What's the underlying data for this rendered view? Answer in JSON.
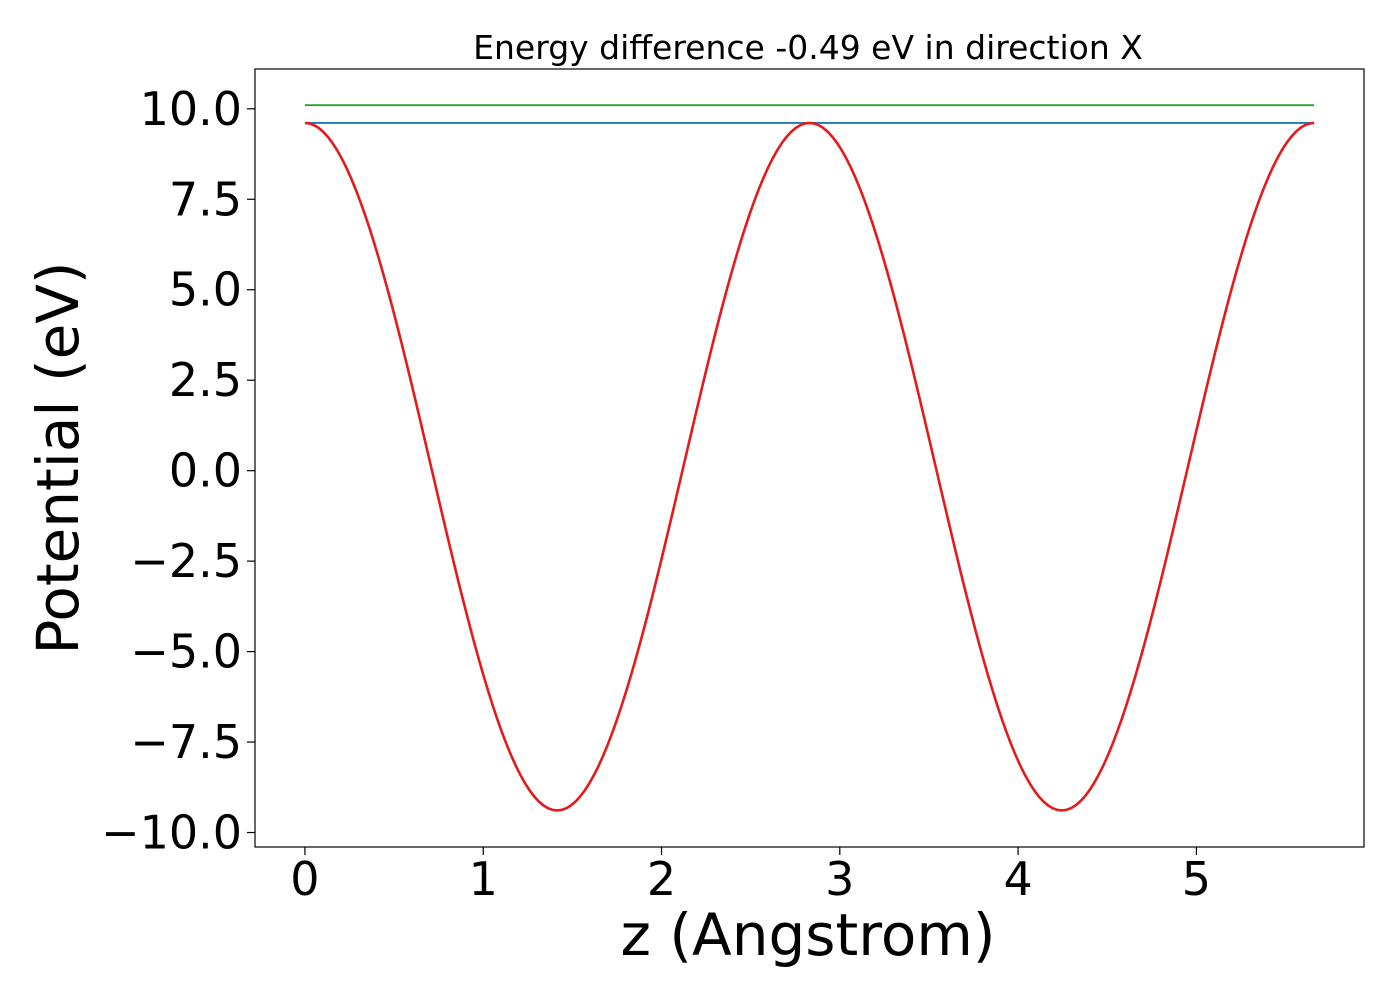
{
  "chart_data": {
    "type": "line",
    "title": "Energy difference -0.49 eV in direction X",
    "xlabel": "z (Angstrom)",
    "ylabel": "Potential (eV)",
    "xlim": [
      -0.28,
      5.94
    ],
    "ylim": [
      -10.4,
      11.1
    ],
    "x_ticks": [
      0,
      1,
      2,
      3,
      4,
      5
    ],
    "x_tick_labels": [
      "0",
      "1",
      "2",
      "3",
      "4",
      "5"
    ],
    "y_ticks": [
      10.0,
      7.5,
      5.0,
      2.5,
      0.0,
      -2.5,
      -5.0,
      -7.5,
      -10.0
    ],
    "y_tick_labels": [
      "10.0",
      "7.5",
      "5.0",
      "2.5",
      "0.0",
      "−2.5",
      "−5.0",
      "−7.5",
      "−10.0"
    ],
    "grid": false,
    "series": [
      {
        "kind": "horizontal",
        "color": "#2ca02c",
        "x": [
          0,
          5.66
        ],
        "y": [
          10.1,
          10.1
        ]
      },
      {
        "kind": "horizontal",
        "color": "#1f77b4",
        "x": [
          0,
          5.66
        ],
        "y": [
          9.61,
          9.61
        ]
      },
      {
        "kind": "cosine",
        "color": "#e41a1c",
        "x_start": 0,
        "x_end": 5.66,
        "period": 2.83,
        "amplitude": 9.5,
        "offset": 0.11,
        "y_max": 9.61,
        "y_min": -9.39
      }
    ]
  }
}
